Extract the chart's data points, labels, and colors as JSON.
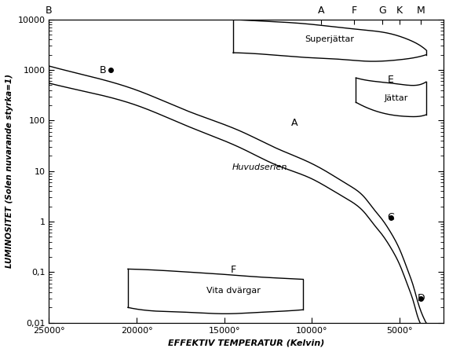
{
  "xlabel": "EFFEKTIV TEMPERATUR (Kelvin)",
  "ylabel": "LUMINOSITET (Solen nuvarande styrka=1)",
  "xlim": [
    25000,
    2500
  ],
  "ylim_log": [
    0.01,
    10000
  ],
  "top_labels": {
    "B": 25000,
    "A": 9500,
    "F": 7600,
    "G": 6000,
    "K": 5000,
    "M": 3800
  },
  "xticks": [
    25000,
    20000,
    15000,
    10000,
    5000
  ],
  "xtick_labels": [
    "25000°",
    "20000°",
    "15000°",
    "10000°",
    "5000°"
  ],
  "yticks": [
    0.01,
    0.1,
    1,
    10,
    100,
    1000,
    10000
  ],
  "ytick_labels": [
    "0,01",
    "0,1",
    "1",
    "10",
    "100",
    "1000",
    "10000"
  ],
  "ms_upper": [
    [
      25000,
      1200
    ],
    [
      23000,
      800
    ],
    [
      20000,
      400
    ],
    [
      17000,
      150
    ],
    [
      14000,
      60
    ],
    [
      12000,
      28
    ],
    [
      10000,
      14
    ],
    [
      9000,
      9
    ],
    [
      8000,
      5.5
    ],
    [
      7000,
      3.0
    ],
    [
      6500,
      1.8
    ],
    [
      6000,
      1.1
    ],
    [
      5500,
      0.6
    ],
    [
      5000,
      0.28
    ],
    [
      4500,
      0.1
    ],
    [
      4200,
      0.05
    ],
    [
      4000,
      0.028
    ],
    [
      3700,
      0.014
    ],
    [
      3500,
      0.01
    ]
  ],
  "ms_lower": [
    [
      25000,
      550
    ],
    [
      23000,
      380
    ],
    [
      20000,
      200
    ],
    [
      17000,
      75
    ],
    [
      14000,
      28
    ],
    [
      12000,
      13
    ],
    [
      10000,
      7
    ],
    [
      9000,
      4.5
    ],
    [
      8000,
      2.8
    ],
    [
      7000,
      1.5
    ],
    [
      6500,
      0.9
    ],
    [
      6000,
      0.55
    ],
    [
      5500,
      0.3
    ],
    [
      5000,
      0.14
    ],
    [
      4500,
      0.05
    ],
    [
      4200,
      0.025
    ],
    [
      4000,
      0.014
    ],
    [
      3700,
      0.008
    ],
    [
      3500,
      0.006
    ]
  ],
  "star_B": {
    "temp": 21500,
    "lum": 1000,
    "label": "B"
  },
  "star_C": {
    "temp": 5500,
    "lum": 1.2,
    "label": "C"
  },
  "star_D": {
    "temp": 3800,
    "lum": 0.03,
    "label": "D"
  },
  "label_A": {
    "temp": 11000,
    "lum": 90,
    "text": "A"
  },
  "label_Huvudserien": {
    "temp": 13000,
    "lum": 12,
    "text": "Huvudserien"
  },
  "sg_upper_x": [
    14500,
    12000,
    10000,
    8500,
    7000,
    5500,
    4500,
    3800,
    3500
  ],
  "sg_upper_y": [
    10000,
    9000,
    8000,
    7000,
    6200,
    5200,
    4000,
    3000,
    2500
  ],
  "sg_lower_x": [
    3500,
    4000,
    5000,
    6000,
    7000,
    8000,
    9500,
    11500,
    14500
  ],
  "sg_lower_y": [
    2000,
    1800,
    1600,
    1500,
    1500,
    1600,
    1700,
    1900,
    2200
  ],
  "label_Superjattar": {
    "temp": 9000,
    "lum": 4000,
    "text": "Superjättar"
  },
  "gi_upper_x": [
    7500,
    6500,
    5500,
    4500,
    3800,
    3500
  ],
  "gi_upper_y": [
    700,
    600,
    550,
    500,
    520,
    580
  ],
  "gi_lower_x": [
    3500,
    4000,
    4500,
    5500,
    6500,
    7500
  ],
  "gi_lower_y": [
    130,
    120,
    120,
    130,
    160,
    230
  ],
  "label_E": {
    "temp": 5500,
    "lum": 650,
    "text": "E"
  },
  "label_Jattar": {
    "temp": 5200,
    "lum": 280,
    "text": "Jättar"
  },
  "wd_right_x": [
    20500,
    19000,
    17000,
    15000,
    13000,
    11500,
    10500
  ],
  "wd_right_y": [
    0.115,
    0.11,
    0.1,
    0.09,
    0.08,
    0.075,
    0.072
  ],
  "wd_left_x": [
    10500,
    11500,
    13000,
    15000,
    17000,
    19000,
    20500
  ],
  "wd_left_y": [
    0.018,
    0.017,
    0.016,
    0.015,
    0.016,
    0.017,
    0.02
  ],
  "label_F": {
    "temp": 14500,
    "lum": 0.11,
    "text": "F"
  },
  "label_Vita": {
    "temp": 14500,
    "lum": 0.043,
    "text": "Vita dvärgar"
  },
  "background_color": "#ffffff",
  "line_color": "#000000"
}
